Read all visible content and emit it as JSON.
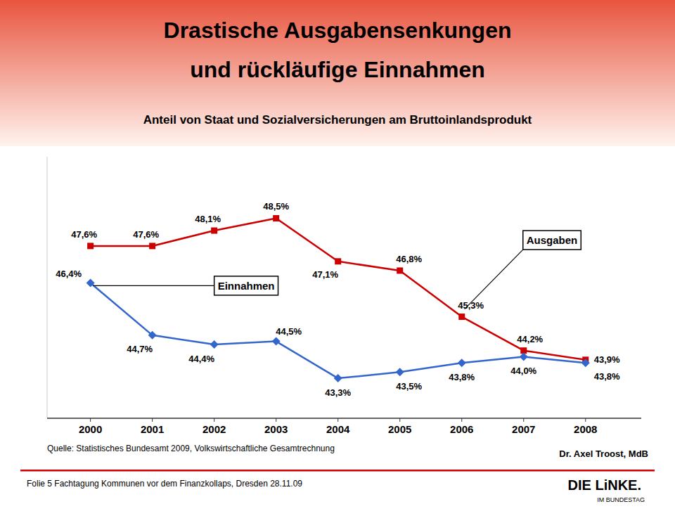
{
  "chart_data": {
    "type": "line",
    "title": [
      "Drastische Ausgabensenkungen",
      "und rückläufige Einnahmen"
    ],
    "subtitle": "Anteil von Staat und Sozialversicherungen am Bruttoinlandsprodukt",
    "x": [
      2000,
      2001,
      2002,
      2003,
      2004,
      2005,
      2006,
      2007,
      2008
    ],
    "series": [
      {
        "name": "Ausgaben",
        "color": "#CC0000",
        "marker": "square",
        "line_style": "solid",
        "values": [
          47.6,
          47.6,
          48.1,
          48.5,
          47.1,
          46.8,
          45.3,
          44.2,
          43.9
        ],
        "value_labels": [
          "47,6%",
          "47,6%",
          "48,1%",
          "48,5%",
          "47,1%",
          "46,8%",
          "45,3%",
          "44,2%",
          "43,9%"
        ]
      },
      {
        "name": "Einnahmen",
        "color": "#3366CC",
        "marker": "diamond",
        "line_style": "solid",
        "values": [
          46.4,
          44.7,
          44.4,
          44.5,
          43.3,
          43.5,
          43.8,
          44.0,
          43.8
        ],
        "value_labels": [
          "46,4%",
          "44,7%",
          "44,4%",
          "44,5%",
          "43,3%",
          "43,5%",
          "43,8%",
          "44,0%",
          "43,8%"
        ]
      }
    ],
    "xlim": [
      1999.3,
      2008.9
    ],
    "xticks": [
      2000,
      2001,
      2002,
      2003,
      2004,
      2005,
      2006,
      2007,
      2008
    ],
    "ylim": [
      42.0,
      50.5
    ],
    "tick_labels": "x",
    "grid": false,
    "data_labels": true,
    "annotations": [
      "Quelle: Statistisches Bundesamt 2009, Volkswirtschaftliche Gesamtrechnung",
      "Folie 5    Fachtagung Kommunen vor dem Finanzkollaps, Dresden 28.11.09",
      "Dr. Axel Troost, MdB",
      "DIE LiNKE.",
      "IM BUNDESTAG"
    ]
  }
}
